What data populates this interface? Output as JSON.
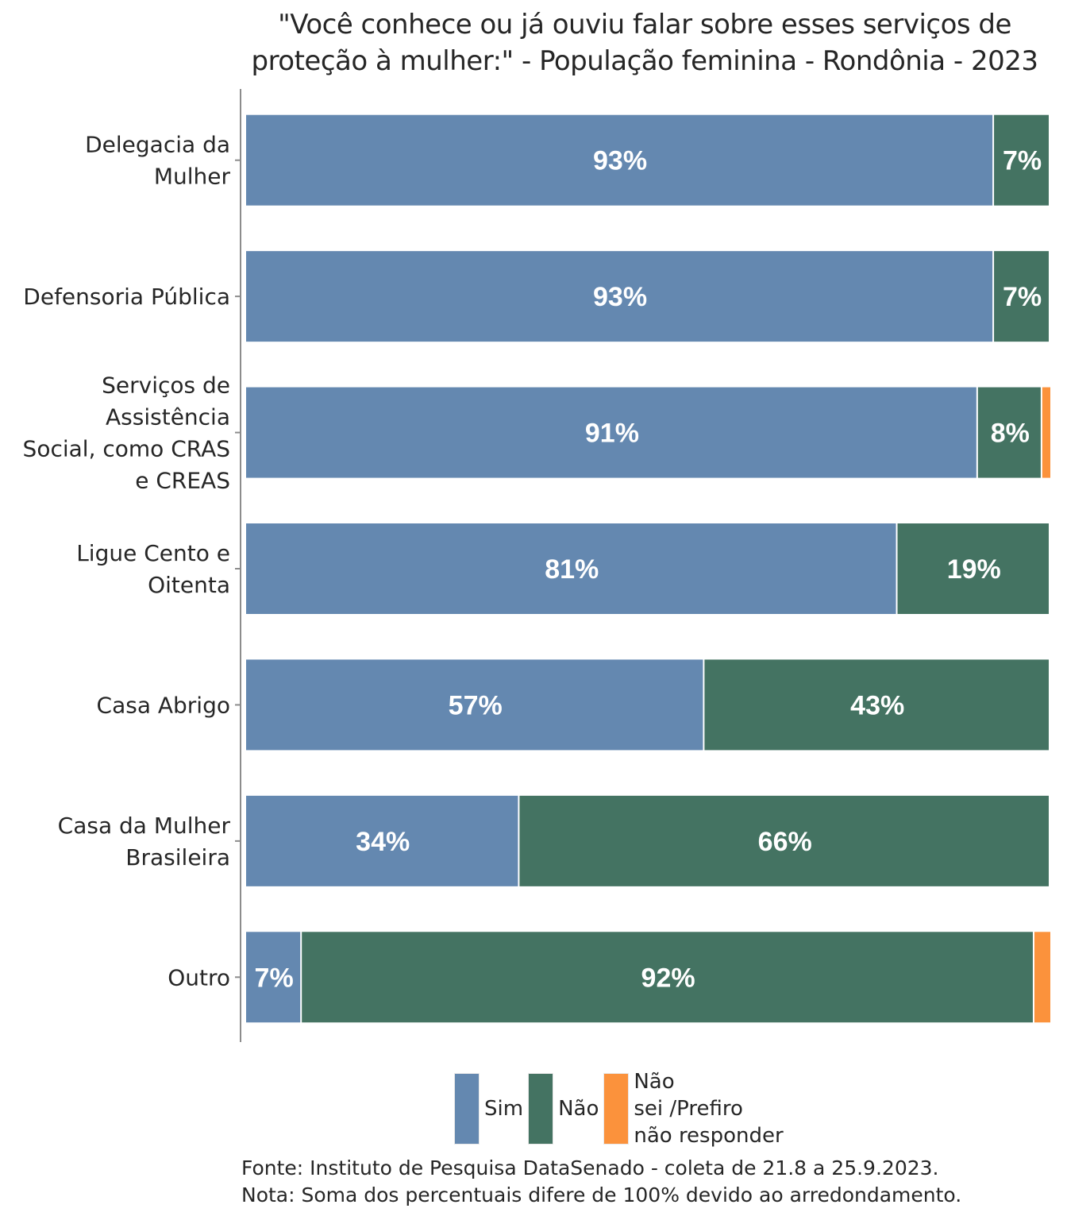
{
  "chart_data": {
    "type": "bar",
    "orientation": "horizontal",
    "stacked": true,
    "title_lines": [
      "\"Você conhece ou já ouviu falar sobre esses serviços de",
      "proteção à mulher:\" - População feminina - Rondônia - 2023"
    ],
    "categories": [
      [
        "Delegacia da",
        "Mulher"
      ],
      [
        "Defensoria Pública"
      ],
      [
        "Serviços de",
        "Assistência",
        "Social, como CRAS",
        "e CREAS"
      ],
      [
        "Ligue Cento e",
        "Oitenta"
      ],
      [
        "Casa Abrigo"
      ],
      [
        "Casa da Mulher",
        "Brasileira"
      ],
      [
        "Outro"
      ]
    ],
    "series": [
      {
        "name": "Sim",
        "color": "#6488b0",
        "values": [
          93,
          93,
          91,
          81,
          57,
          34,
          7
        ]
      },
      {
        "name": "Não",
        "color": "#447362",
        "values": [
          7,
          7,
          8,
          19,
          43,
          66,
          92
        ]
      },
      {
        "name": "Não sei /Prefiro não responder",
        "color": "#fb923c",
        "values": [
          0,
          0,
          1,
          0,
          0,
          0,
          2
        ]
      }
    ],
    "data_labels": [
      [
        "93%",
        "7%",
        ""
      ],
      [
        "93%",
        "7%",
        ""
      ],
      [
        "91%",
        "8%",
        ""
      ],
      [
        "81%",
        "19%",
        ""
      ],
      [
        "57%",
        "43%",
        ""
      ],
      [
        "34%",
        "66%",
        ""
      ],
      [
        "7%",
        "92%",
        ""
      ]
    ],
    "xlim": [
      0,
      100
    ],
    "xlabel": "",
    "ylabel": "",
    "grid": false,
    "legend": {
      "position": "bottom",
      "items": [
        {
          "label_lines": [
            "Sim"
          ],
          "color": "#6488b0"
        },
        {
          "label_lines": [
            "Não"
          ],
          "color": "#447362"
        },
        {
          "label_lines": [
            "Não",
            "sei /Prefiro",
            "não responder"
          ],
          "color": "#fb923c"
        }
      ]
    },
    "notes": [
      "Fonte: Instituto de Pesquisa DataSenado - coleta de 21.8 a 25.9.2023.",
      "Nota: Soma dos percentuais difere de 100% devido ao arredondamento."
    ]
  }
}
